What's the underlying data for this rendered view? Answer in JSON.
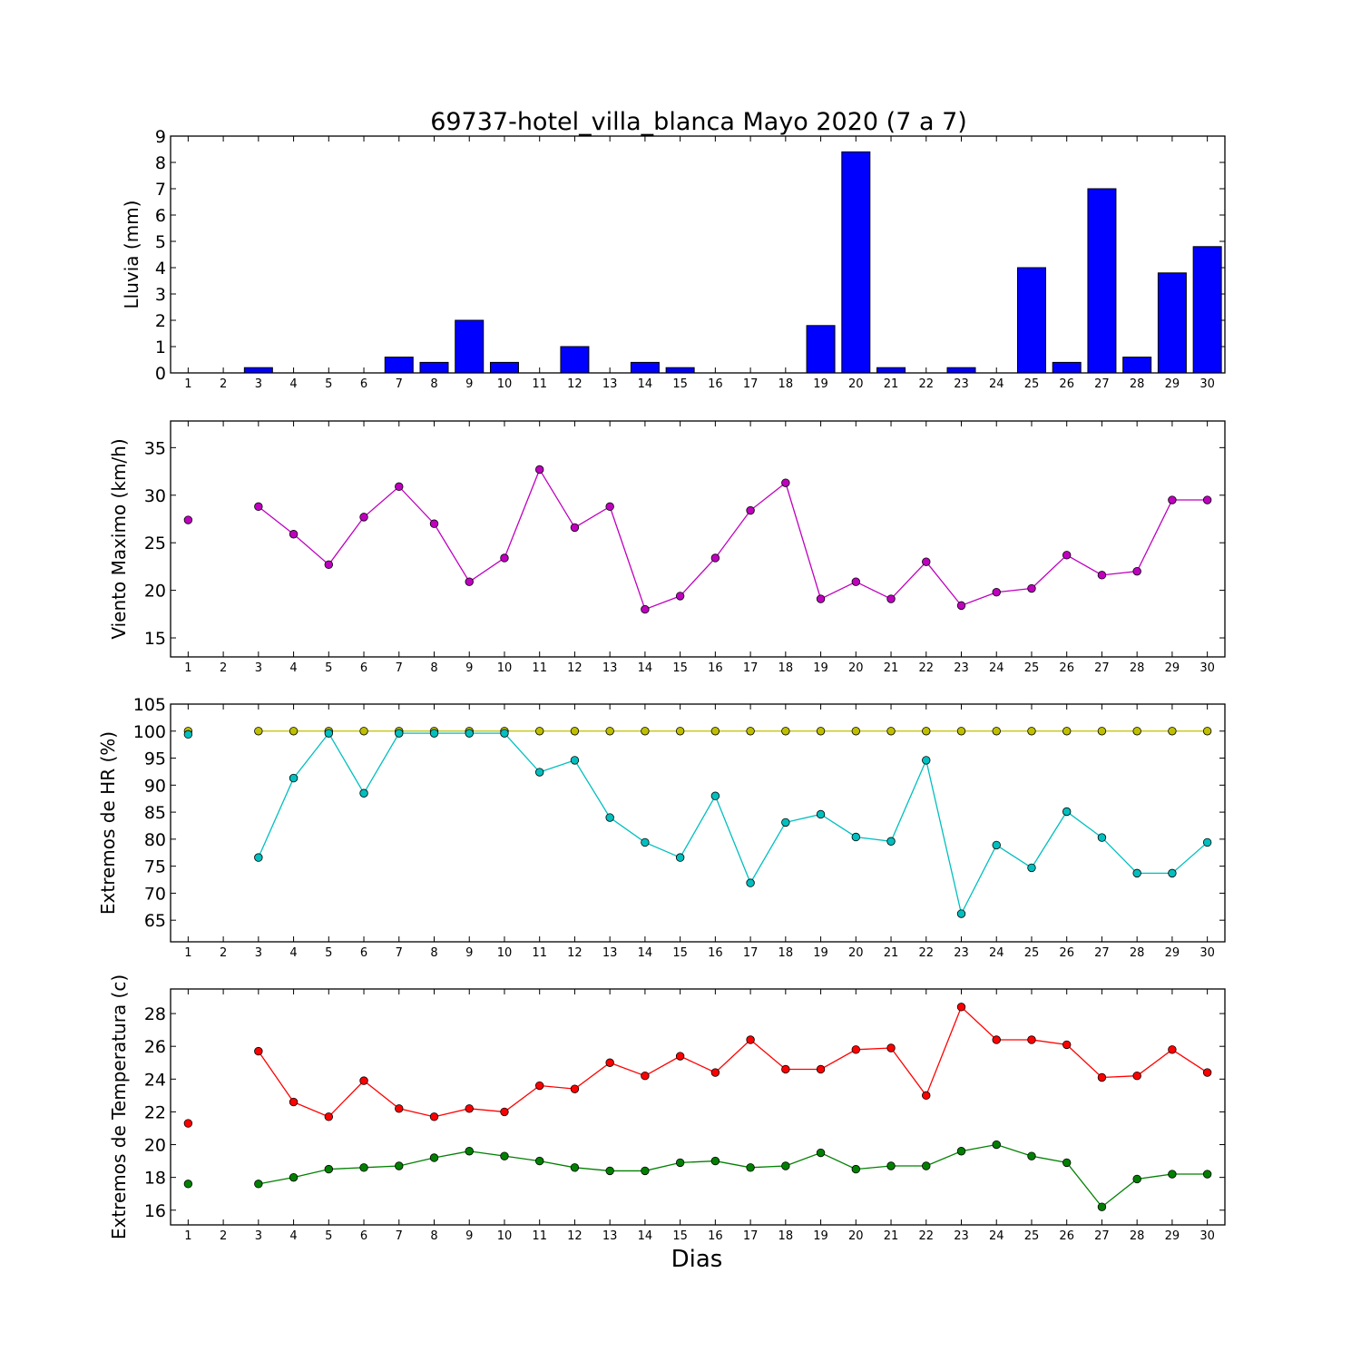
{
  "title": "69737-hotel_villa_blanca Mayo 2020  (7 a 7)",
  "xlabel": "Dias",
  "colors": {
    "rain": "#0000ff",
    "wind": "#bf00bf",
    "hr_max": "#bfbf00",
    "hr_min": "#00bfbf",
    "temp_max": "#ff0000",
    "temp_min": "#008000"
  },
  "chart_data": [
    {
      "type": "bar",
      "ylabel": "Lluvia (mm)",
      "ylim": [
        0,
        9
      ],
      "yticks": [
        0,
        1,
        2,
        3,
        4,
        5,
        6,
        7,
        8,
        9
      ],
      "categories": [
        1,
        2,
        3,
        4,
        5,
        6,
        7,
        8,
        9,
        10,
        11,
        12,
        13,
        14,
        15,
        16,
        17,
        18,
        19,
        20,
        21,
        22,
        23,
        24,
        25,
        26,
        27,
        28,
        29,
        30
      ],
      "values": [
        0,
        0,
        0.2,
        0,
        0,
        0,
        0.6,
        0.4,
        2.0,
        0.4,
        0,
        1.0,
        0,
        0.4,
        0.2,
        0,
        0,
        0,
        1.8,
        8.4,
        0.2,
        0,
        0.2,
        0,
        4.0,
        0.4,
        7.0,
        0.6,
        3.8,
        4.8
      ]
    },
    {
      "type": "line",
      "ylabel": "Viento Maximo (km/h)",
      "ylim": [
        13,
        37.8
      ],
      "yticks": [
        15,
        20,
        25,
        30,
        35
      ],
      "x": [
        1,
        2,
        3,
        4,
        5,
        6,
        7,
        8,
        9,
        10,
        11,
        12,
        13,
        14,
        15,
        16,
        17,
        18,
        19,
        20,
        21,
        22,
        23,
        24,
        25,
        26,
        27,
        28,
        29,
        30
      ],
      "series": [
        {
          "color": "wind",
          "values": [
            27.4,
            null,
            28.8,
            25.9,
            22.7,
            27.7,
            30.9,
            27.0,
            20.9,
            23.4,
            32.7,
            26.6,
            28.8,
            18.0,
            19.4,
            23.4,
            28.4,
            31.3,
            19.1,
            20.9,
            19.1,
            23.0,
            18.4,
            19.8,
            20.2,
            23.7,
            21.6,
            22.0,
            29.5,
            29.5
          ]
        }
      ]
    },
    {
      "type": "line",
      "ylabel": "Extremos de HR (%)",
      "ylim": [
        61,
        105
      ],
      "yticks": [
        65,
        70,
        75,
        80,
        85,
        90,
        95,
        100,
        105
      ],
      "x": [
        1,
        2,
        3,
        4,
        5,
        6,
        7,
        8,
        9,
        10,
        11,
        12,
        13,
        14,
        15,
        16,
        17,
        18,
        19,
        20,
        21,
        22,
        23,
        24,
        25,
        26,
        27,
        28,
        29,
        30
      ],
      "series": [
        {
          "color": "hr_max",
          "values": [
            100,
            null,
            100,
            100,
            100,
            100,
            100,
            100,
            100,
            100,
            100,
            100,
            100,
            100,
            100,
            100,
            100,
            100,
            100,
            100,
            100,
            100,
            100,
            100,
            100,
            100,
            100,
            100,
            100,
            100
          ]
        },
        {
          "color": "hr_min",
          "values": [
            99.4,
            null,
            76.6,
            91.3,
            99.6,
            88.5,
            99.6,
            99.6,
            99.6,
            99.6,
            92.4,
            94.6,
            84.0,
            79.4,
            76.6,
            88.0,
            71.9,
            83.1,
            84.6,
            80.4,
            79.6,
            94.6,
            66.2,
            78.9,
            74.7,
            85.1,
            80.3,
            73.7,
            73.7,
            79.4
          ]
        }
      ]
    },
    {
      "type": "line",
      "ylabel": "Extremos de Temperatura (c)",
      "ylim": [
        15.1,
        29.5
      ],
      "yticks": [
        16,
        18,
        20,
        22,
        24,
        26,
        28
      ],
      "x": [
        1,
        2,
        3,
        4,
        5,
        6,
        7,
        8,
        9,
        10,
        11,
        12,
        13,
        14,
        15,
        16,
        17,
        18,
        19,
        20,
        21,
        22,
        23,
        24,
        25,
        26,
        27,
        28,
        29,
        30
      ],
      "series": [
        {
          "color": "temp_max",
          "values": [
            21.3,
            null,
            25.7,
            22.6,
            21.7,
            23.9,
            22.2,
            21.7,
            22.2,
            22.0,
            23.6,
            23.4,
            25.0,
            24.2,
            25.4,
            24.4,
            26.4,
            24.6,
            24.6,
            25.8,
            25.9,
            23.0,
            28.4,
            26.4,
            26.4,
            26.1,
            24.1,
            24.2,
            25.8,
            24.4
          ]
        },
        {
          "color": "temp_min",
          "values": [
            17.6,
            null,
            17.6,
            18.0,
            18.5,
            18.6,
            18.7,
            19.2,
            19.6,
            19.3,
            19.0,
            18.6,
            18.4,
            18.4,
            18.9,
            19.0,
            18.6,
            18.7,
            19.5,
            18.5,
            18.7,
            18.7,
            19.6,
            20.0,
            19.3,
            18.9,
            16.2,
            17.9,
            18.2,
            18.2
          ]
        }
      ]
    }
  ]
}
